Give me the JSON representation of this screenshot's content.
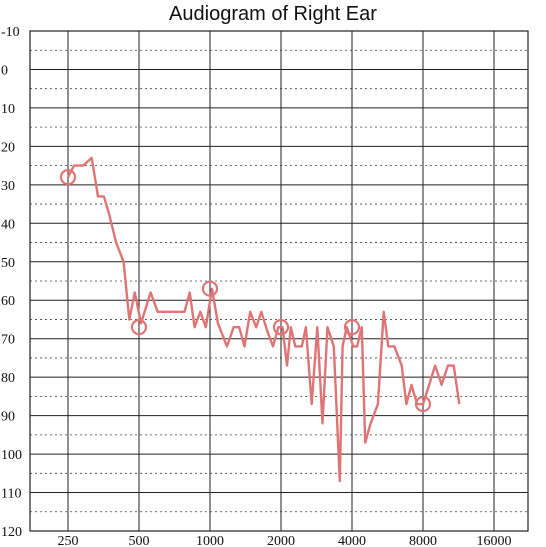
{
  "chart_data": {
    "type": "line",
    "title": "Audiogram of Right Ear",
    "xlabel": "",
    "ylabel": "",
    "x_scale": "log2",
    "x_ticks": [
      250,
      500,
      1000,
      2000,
      4000,
      8000,
      16000
    ],
    "x_tick_labels": [
      "250",
      "500",
      "1000",
      "2000",
      "4000",
      "8000",
      "16000"
    ],
    "y_ticks": [
      -10,
      0,
      10,
      20,
      30,
      40,
      50,
      60,
      70,
      80,
      90,
      100,
      110,
      120
    ],
    "y_tick_labels": [
      "-10",
      "0",
      "10",
      "20",
      "30",
      "40",
      "50",
      "60",
      "70",
      "80",
      "90",
      "100",
      "110",
      "120"
    ],
    "ylim": [
      -10,
      120
    ],
    "y_inverted": true,
    "grid": true,
    "line_color": "#e07474",
    "series": [
      {
        "values": [
          [
            250,
            28
          ],
          [
            265,
            25
          ],
          [
            290,
            25
          ],
          [
            315,
            23
          ],
          [
            335,
            33
          ],
          [
            355,
            33
          ],
          [
            375,
            38
          ],
          [
            400,
            45
          ],
          [
            430,
            50
          ],
          [
            455,
            65
          ],
          [
            480,
            58
          ],
          [
            510,
            66
          ],
          [
            560,
            58
          ],
          [
            600,
            63
          ],
          [
            700,
            63
          ],
          [
            780,
            63
          ],
          [
            820,
            58
          ],
          [
            860,
            67
          ],
          [
            910,
            63
          ],
          [
            960,
            67
          ],
          [
            1020,
            57
          ],
          [
            1080,
            66
          ],
          [
            1180,
            72
          ],
          [
            1260,
            67
          ],
          [
            1330,
            67
          ],
          [
            1400,
            72
          ],
          [
            1480,
            63
          ],
          [
            1570,
            67
          ],
          [
            1650,
            63
          ],
          [
            1750,
            68
          ],
          [
            1850,
            72
          ],
          [
            1950,
            67
          ],
          [
            2030,
            67
          ],
          [
            2120,
            77
          ],
          [
            2200,
            67
          ],
          [
            2300,
            72
          ],
          [
            2450,
            72
          ],
          [
            2550,
            67
          ],
          [
            2700,
            87
          ],
          [
            2850,
            67
          ],
          [
            3000,
            92
          ],
          [
            3150,
            67
          ],
          [
            3350,
            72
          ],
          [
            3550,
            107
          ],
          [
            3650,
            72
          ],
          [
            3800,
            67
          ],
          [
            4050,
            72
          ],
          [
            4200,
            72
          ],
          [
            4400,
            67
          ],
          [
            4550,
            97
          ],
          [
            4800,
            92
          ],
          [
            5150,
            87
          ],
          [
            5450,
            63
          ],
          [
            5700,
            72
          ],
          [
            6050,
            72
          ],
          [
            6500,
            77
          ],
          [
            6800,
            87
          ],
          [
            7150,
            82
          ],
          [
            7550,
            87
          ],
          [
            8000,
            87
          ],
          [
            8500,
            82
          ],
          [
            9000,
            77
          ],
          [
            9600,
            82
          ],
          [
            10200,
            77
          ],
          [
            10800,
            77
          ],
          [
            11400,
            87
          ]
        ]
      }
    ],
    "markers": [
      {
        "x": 250,
        "y": 28
      },
      {
        "x": 500,
        "y": 67
      },
      {
        "x": 1000,
        "y": 57
      },
      {
        "x": 2000,
        "y": 67
      },
      {
        "x": 4000,
        "y": 67
      },
      {
        "x": 8000,
        "y": 87
      }
    ]
  }
}
